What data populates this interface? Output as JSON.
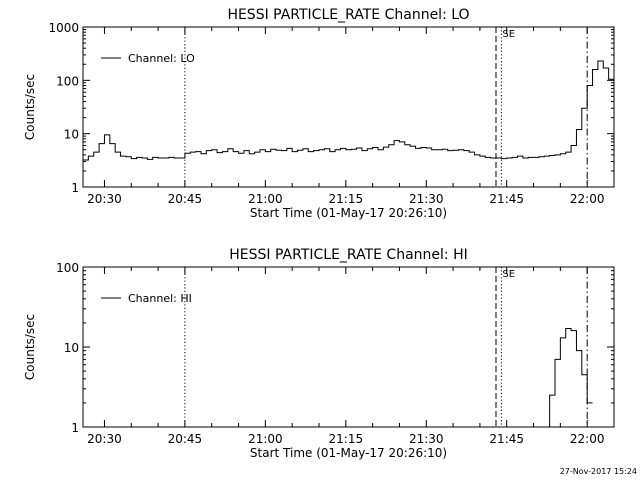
{
  "footer": {
    "timestamp": "27-Nov-2017 15:24"
  },
  "chart_data": [
    {
      "type": "line",
      "title": "HESSI PARTICLE_RATE Channel: LO",
      "xlabel": "Start Time (01-May-17 20:26:10)",
      "ylabel": "Counts/sec",
      "yscale": "log",
      "ylim": [
        1,
        1000
      ],
      "xlim_minutes_after_20_26": [
        0,
        99
      ],
      "y_tick_labels": [
        "1",
        "10",
        "100",
        "1000"
      ],
      "y_tick_values": [
        1,
        10,
        100,
        1000
      ],
      "x_tick_labels": [
        "20:30",
        "20:45",
        "21:00",
        "21:15",
        "21:30",
        "21:45",
        "22:00"
      ],
      "legend": {
        "label": "Channel: LO",
        "position": "top-left"
      },
      "grid": false,
      "markers": [
        {
          "time": "20:45",
          "style": "dotted"
        },
        {
          "time": "21:43",
          "style": "dashed"
        },
        {
          "time": "21:44",
          "style": "dotted",
          "label": "SE"
        },
        {
          "time": "22:00",
          "style": "dash-dot"
        }
      ],
      "series": [
        {
          "name": "Channel: LO",
          "x": [
            "20:26",
            "20:27",
            "20:28",
            "20:29",
            "20:30",
            "20:31",
            "20:32",
            "20:33",
            "20:34",
            "20:35",
            "20:36",
            "20:37",
            "20:38",
            "20:39",
            "20:40",
            "20:41",
            "20:42",
            "20:43",
            "20:44",
            "20:45",
            "20:46",
            "20:47",
            "20:48",
            "20:49",
            "20:50",
            "20:51",
            "20:52",
            "20:53",
            "20:54",
            "20:55",
            "20:56",
            "20:57",
            "20:58",
            "20:59",
            "21:00",
            "21:01",
            "21:02",
            "21:03",
            "21:04",
            "21:05",
            "21:06",
            "21:07",
            "21:08",
            "21:09",
            "21:10",
            "21:11",
            "21:12",
            "21:13",
            "21:14",
            "21:15",
            "21:16",
            "21:17",
            "21:18",
            "21:19",
            "21:20",
            "21:21",
            "21:22",
            "21:23",
            "21:24",
            "21:25",
            "21:26",
            "21:27",
            "21:28",
            "21:29",
            "21:30",
            "21:31",
            "21:32",
            "21:33",
            "21:34",
            "21:35",
            "21:36",
            "21:37",
            "21:38",
            "21:39",
            "21:40",
            "21:41",
            "21:42",
            "21:43",
            "21:44",
            "21:45",
            "21:46",
            "21:47",
            "21:48",
            "21:49",
            "21:50",
            "21:51",
            "21:52",
            "21:53",
            "21:54",
            "21:55",
            "21:56",
            "21:57",
            "21:58",
            "21:59",
            "22:00",
            "22:01",
            "22:02",
            "22:03",
            "22:04",
            "22:05"
          ],
          "values": [
            3.2,
            3.8,
            4.5,
            6.5,
            9.5,
            6.5,
            4.5,
            3.8,
            3.7,
            3.4,
            3.6,
            3.5,
            3.3,
            3.6,
            3.5,
            3.5,
            3.6,
            3.5,
            3.5,
            4.3,
            4.5,
            4.6,
            4.2,
            4.8,
            5.0,
            4.4,
            4.6,
            5.2,
            4.6,
            4.3,
            4.8,
            4.2,
            4.5,
            5.0,
            4.6,
            5.1,
            4.9,
            4.8,
            5.3,
            4.6,
            4.9,
            5.2,
            4.6,
            4.8,
            5.0,
            5.2,
            4.6,
            5.0,
            5.3,
            5.0,
            5.1,
            5.4,
            4.8,
            5.2,
            5.5,
            5.0,
            5.6,
            6.2,
            7.4,
            7.0,
            6.2,
            5.8,
            5.3,
            5.5,
            5.4,
            5.0,
            5.0,
            5.1,
            4.8,
            4.9,
            5.0,
            4.8,
            4.5,
            4.0,
            3.8,
            3.6,
            3.5,
            3.5,
            3.4,
            3.5,
            3.6,
            3.8,
            3.5,
            3.6,
            3.6,
            3.7,
            3.8,
            3.9,
            4.0,
            4.2,
            4.5,
            6.0,
            12,
            30,
            80,
            160,
            230,
            170,
            105,
            null
          ]
        }
      ]
    },
    {
      "type": "line",
      "title": "HESSI PARTICLE_RATE Channel: HI",
      "xlabel": "Start Time (01-May-17 20:26:10)",
      "ylabel": "Counts/sec",
      "yscale": "log",
      "ylim": [
        1,
        100
      ],
      "xlim_minutes_after_20_26": [
        0,
        99
      ],
      "y_tick_labels": [
        "1",
        "10",
        "100"
      ],
      "y_tick_values": [
        1,
        10,
        100
      ],
      "x_tick_labels": [
        "20:30",
        "20:45",
        "21:00",
        "21:15",
        "21:30",
        "21:45",
        "22:00"
      ],
      "legend": {
        "label": "Channel: HI",
        "position": "top-left"
      },
      "grid": false,
      "markers": [
        {
          "time": "20:45",
          "style": "dotted"
        },
        {
          "time": "21:43",
          "style": "dashed"
        },
        {
          "time": "21:44",
          "style": "dotted",
          "label": "SE"
        },
        {
          "time": "22:00",
          "style": "dash-dot"
        }
      ],
      "series": [
        {
          "name": "Channel: HI",
          "x": [
            "21:52",
            "21:53",
            "21:54",
            "21:55",
            "21:56",
            "21:57",
            "21:58",
            "21:59",
            "22:00",
            "22:01"
          ],
          "values": [
            1.0,
            2.5,
            7.0,
            13,
            17,
            16,
            9,
            4.5,
            2.0,
            null
          ]
        }
      ]
    }
  ]
}
